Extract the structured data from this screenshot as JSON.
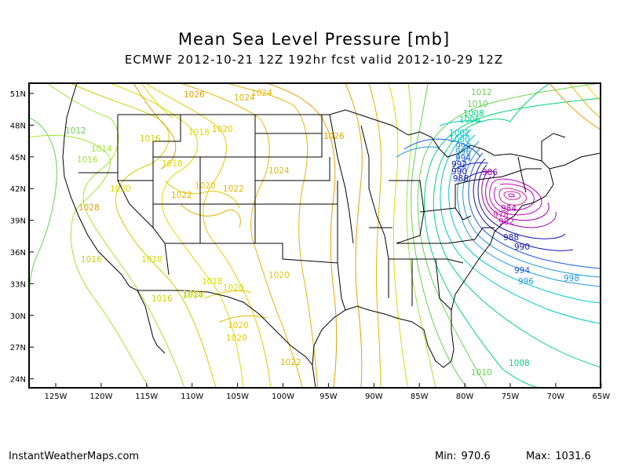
{
  "title": "Mean Sea Level Pressure [mb]",
  "subtitle": "ECMWF 2012-10-21 12Z 192hr fcst valid 2012-10-29 12Z",
  "footer": {
    "source": "InstantWeatherMaps.com",
    "min_label": "Min:",
    "min_value": "970.6",
    "max_label": "Max:",
    "max_value": "1031.6"
  },
  "axes": {
    "lat_labels": [
      "51N",
      "48N",
      "45N",
      "42N",
      "39N",
      "36N",
      "33N",
      "30N",
      "27N",
      "24N"
    ],
    "lon_labels": [
      "125W",
      "120W",
      "115W",
      "110W",
      "105W",
      "100W",
      "95W",
      "90W",
      "85W",
      "80W",
      "75W",
      "70W",
      "65W"
    ]
  },
  "isobars": {
    "colors": {
      "970": "#a000c8",
      "975": "#c800c8",
      "980": "#d21e9e",
      "985": "#a000a0",
      "990": "#1414b4",
      "994": "#1e5ae6",
      "998": "#1e96e6",
      "1002": "#00c8c8",
      "1006": "#00d278",
      "1010": "#64d250",
      "1014": "#a0e632",
      "1018": "#dcdc00",
      "1022": "#e6b400",
      "1026": "#e6a000"
    },
    "labels": [
      {
        "text": "1012",
        "color": "#64d250"
      },
      {
        "text": "1010",
        "color": "#64d250"
      },
      {
        "text": "1008",
        "color": "#00d278"
      },
      {
        "text": "1006",
        "color": "#00d278"
      },
      {
        "text": "1002",
        "color": "#00c8c8"
      },
      {
        "text": "1000",
        "color": "#00c8c8"
      },
      {
        "text": "998",
        "color": "#1e96e6"
      },
      {
        "text": "996",
        "color": "#1e96e6"
      },
      {
        "text": "994",
        "color": "#1e5ae6"
      },
      {
        "text": "992",
        "color": "#1414b4"
      },
      {
        "text": "990",
        "color": "#1414b4"
      },
      {
        "text": "988",
        "color": "#1414b4"
      },
      {
        "text": "986",
        "color": "#a000a0"
      },
      {
        "text": "984",
        "color": "#a000a0"
      },
      {
        "text": "982",
        "color": "#c800c8"
      },
      {
        "text": "978",
        "color": "#d21e9e"
      },
      {
        "text": "988",
        "color": "#1414b4"
      },
      {
        "text": "990",
        "color": "#1414b4"
      },
      {
        "text": "994",
        "color": "#1e5ae6"
      },
      {
        "text": "996",
        "color": "#1e96e6"
      },
      {
        "text": "998",
        "color": "#1e96e6"
      },
      {
        "text": "1008",
        "color": "#00d278"
      },
      {
        "text": "1010",
        "color": "#64d250"
      },
      {
        "text": "1012",
        "color": "#64d250"
      },
      {
        "text": "1014",
        "color": "#a0e632"
      },
      {
        "text": "1016",
        "color": "#a0e632"
      },
      {
        "text": "1016",
        "color": "#c8d200"
      },
      {
        "text": "1018",
        "color": "#dcdc00"
      },
      {
        "text": "1018",
        "color": "#dcdc00"
      },
      {
        "text": "1020",
        "color": "#dcdc00"
      },
      {
        "text": "1020",
        "color": "#e6c800"
      },
      {
        "text": "1020",
        "color": "#e6c800"
      },
      {
        "text": "1022",
        "color": "#e6b400"
      },
      {
        "text": "1022",
        "color": "#e6b400"
      },
      {
        "text": "1024",
        "color": "#e6b400"
      },
      {
        "text": "1024",
        "color": "#e6b400"
      },
      {
        "text": "1026",
        "color": "#e6a000"
      },
      {
        "text": "1026",
        "color": "#e6a000"
      },
      {
        "text": "1028",
        "color": "#e6a000"
      },
      {
        "text": "1018",
        "color": "#dcdc00"
      },
      {
        "text": "1016",
        "color": "#c8d200"
      },
      {
        "text": "1016",
        "color": "#c8d200"
      },
      {
        "text": "1014",
        "color": "#a0e632"
      },
      {
        "text": "1018",
        "color": "#dcdc00"
      },
      {
        "text": "1020",
        "color": "#dcdc00"
      },
      {
        "text": "1020",
        "color": "#e6c800"
      },
      {
        "text": "1020",
        "color": "#e6c800"
      },
      {
        "text": "1020",
        "color": "#e6c800"
      },
      {
        "text": "1022",
        "color": "#e6b400"
      },
      {
        "text": "1024",
        "color": "#e6b400"
      },
      {
        "text": "1020",
        "color": "#e6c800"
      }
    ]
  }
}
